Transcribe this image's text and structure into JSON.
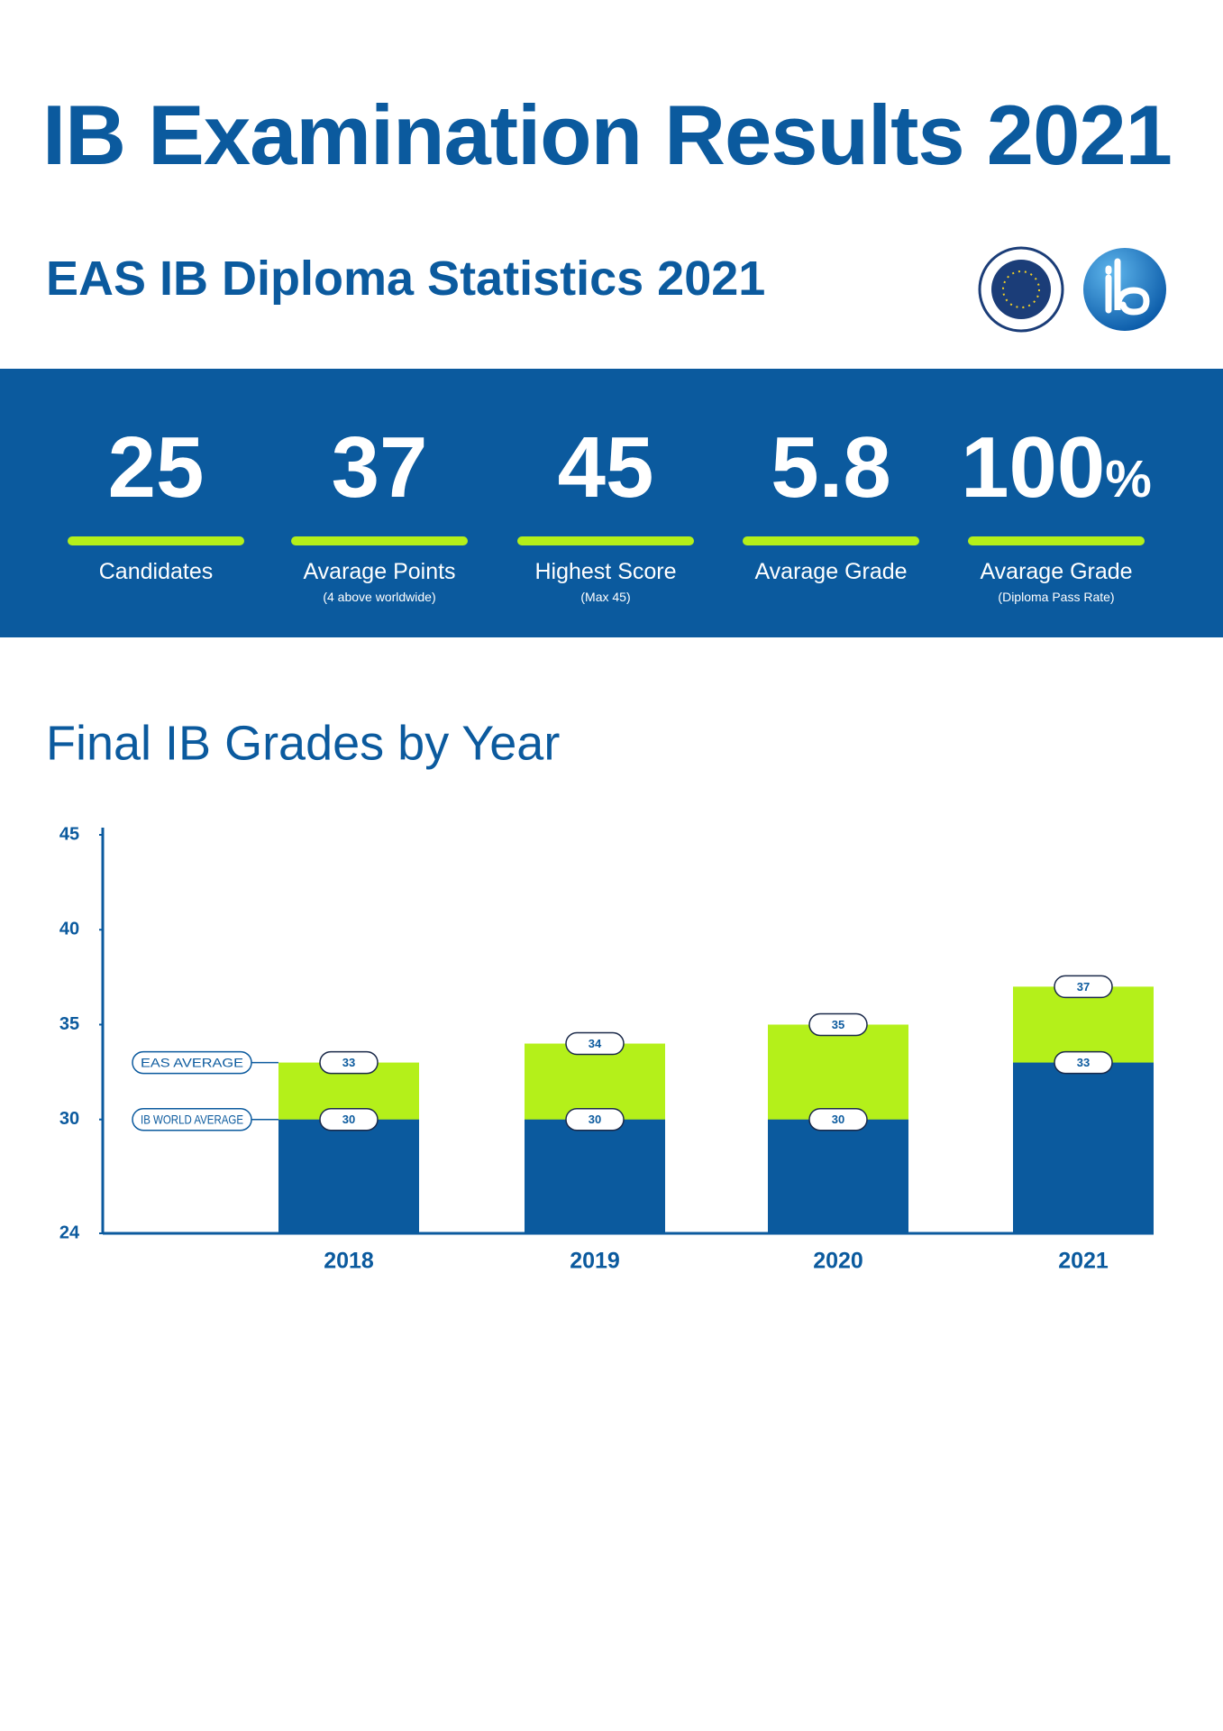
{
  "header": {
    "title": "IB Examination Results 2021",
    "subtitle": "EAS IB Diploma Statistics 2021"
  },
  "stats": [
    {
      "value": 25,
      "label": "Candidates"
    },
    {
      "value": 37,
      "label": "Avarage Points",
      "note": "(4 above worldwide)"
    },
    {
      "value": 45,
      "label": "Highest Score",
      "note": "(Max 45)"
    },
    {
      "value": 5.8,
      "label": "Avarage Grade"
    },
    {
      "value": 100,
      "unit": "%",
      "label": "Avarage Grade",
      "note": "(Diploma Pass Rate)"
    }
  ],
  "chart_data": {
    "type": "bar",
    "title": "Final IB Grades by Year",
    "categories": [
      "2018",
      "2019",
      "2020",
      "2021"
    ],
    "series": [
      {
        "name": "EAS AVERAGE",
        "color": "#b4f01a",
        "values": [
          33,
          34,
          35,
          37
        ]
      },
      {
        "name": "IB WORLD AVERAGE",
        "color": "#0b5a9e",
        "values": [
          30,
          30,
          30,
          33
        ]
      }
    ],
    "ylim": [
      24,
      45
    ],
    "yticks": [
      24,
      30,
      35,
      40,
      45
    ]
  }
}
